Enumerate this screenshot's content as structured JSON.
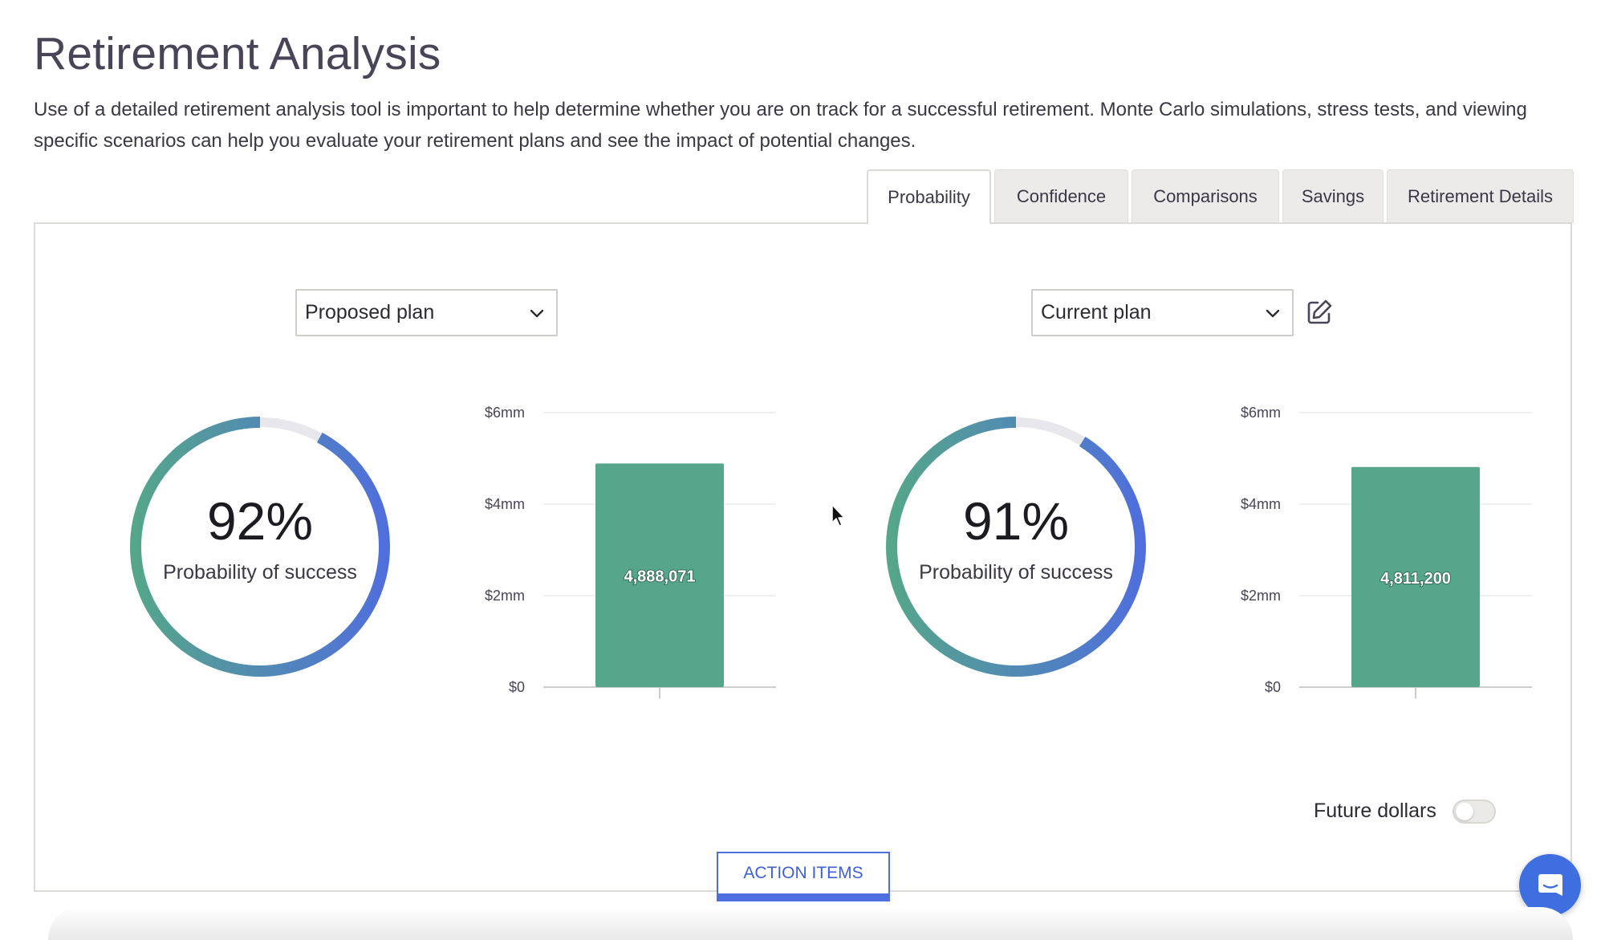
{
  "page": {
    "title": "Retirement Analysis",
    "intro": "Use of a detailed retirement analysis tool is important to help determine whether you are on track for a successful retirement. Monte Carlo simulations, stress tests, and viewing specific scenarios can help you evaluate your retirement plans and see the impact of potential changes."
  },
  "tabs": [
    {
      "label": "Probability",
      "active": true
    },
    {
      "label": "Confidence",
      "active": false
    },
    {
      "label": "Comparisons",
      "active": false
    },
    {
      "label": "Savings",
      "active": false
    },
    {
      "label": "Retirement Details",
      "active": false
    }
  ],
  "plans": [
    {
      "select_value": "Proposed plan",
      "probability": 92,
      "probability_text": "92%",
      "probability_label": "Probability of success",
      "bar_label": "4,888,071"
    },
    {
      "select_value": "Current plan",
      "probability": 91,
      "probability_text": "91%",
      "probability_label": "Probability of success",
      "bar_label": "4,811,200"
    }
  ],
  "chart_data": [
    {
      "type": "bar",
      "categories": [
        ""
      ],
      "values": [
        4888071
      ],
      "ylim": [
        0,
        6000000
      ],
      "yticks": [
        0,
        2000000,
        4000000,
        6000000
      ],
      "ytick_labels": [
        "$0",
        "$2mm",
        "$4mm",
        "$6mm"
      ],
      "data_labels": [
        "4,888,071"
      ],
      "grid": true,
      "color": "#55a68a"
    },
    {
      "type": "bar",
      "categories": [
        ""
      ],
      "values": [
        4811200
      ],
      "ylim": [
        0,
        6000000
      ],
      "yticks": [
        0,
        2000000,
        4000000,
        6000000
      ],
      "ytick_labels": [
        "$0",
        "$2mm",
        "$4mm",
        "$6mm"
      ],
      "data_labels": [
        "4,811,200"
      ],
      "grid": true,
      "color": "#55a68a"
    }
  ],
  "controls": {
    "future_dollars_label": "Future dollars",
    "future_dollars_on": false,
    "action_items_label": "ACTION ITEMS"
  },
  "colors": {
    "ring_start": "#4f6fdc",
    "ring_end": "#55a68a",
    "ring_track": "#e8e8ec",
    "accent": "#3e6ee0",
    "bar": "#55a68a"
  },
  "icons": {
    "select_chevron": "chevron-down-icon",
    "edit": "edit-pencil-icon",
    "chat": "chat-bubble-icon"
  }
}
